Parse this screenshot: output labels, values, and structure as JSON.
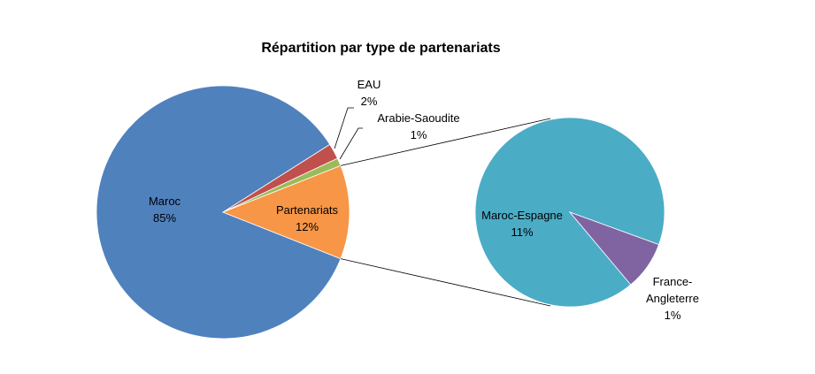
{
  "chart_data": {
    "type": "pie-of-pie",
    "title": "Répartition par type de partenariats",
    "categories": [
      "Maroc",
      "EAU",
      "Arabie-Saoudite",
      "Partenariats"
    ],
    "values": [
      85,
      2,
      1,
      12
    ],
    "value_labels": [
      "85%",
      "2%",
      "1%",
      "12%"
    ],
    "colors": [
      "#4f81bd",
      "#c0504d",
      "#9bbb59",
      "#f79646"
    ],
    "secondary": {
      "categories": [
        "Maroc-Espagne",
        "France-Angleterre"
      ],
      "values": [
        11,
        1
      ],
      "value_labels": [
        "11%",
        "1%"
      ],
      "colors": [
        "#4bacc6",
        "#8064a2"
      ]
    }
  }
}
